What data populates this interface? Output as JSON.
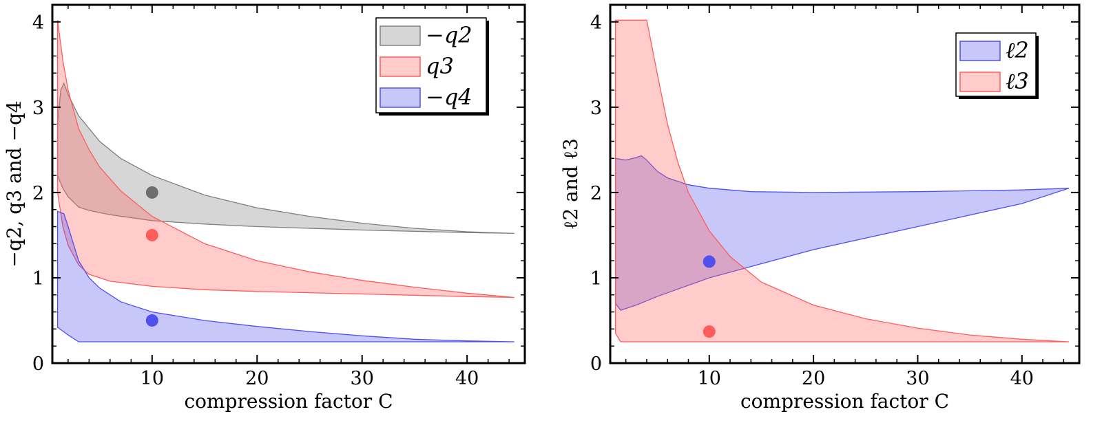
{
  "chart_data": [
    {
      "type": "area",
      "xlabel": "compression factor C",
      "ylabel": "−q2, q3 and −q4",
      "xlim": [
        0.5,
        45.5
      ],
      "ylim": [
        0,
        4.2
      ],
      "xticks": [
        10,
        20,
        30,
        40
      ],
      "yticks": [
        0,
        1,
        2,
        3,
        4
      ],
      "legend_position": "top-right",
      "series": [
        {
          "name": "−q2",
          "color": "#808080",
          "upper": [
            [
              1,
              2.8
            ],
            [
              1.3,
              3.2
            ],
            [
              1.6,
              3.28
            ],
            [
              2,
              3.15
            ],
            [
              3,
              2.9
            ],
            [
              4,
              2.75
            ],
            [
              5,
              2.6
            ],
            [
              7,
              2.4
            ],
            [
              10,
              2.2
            ],
            [
              15,
              1.97
            ],
            [
              20,
              1.82
            ],
            [
              25,
              1.72
            ],
            [
              30,
              1.64
            ],
            [
              35,
              1.58
            ],
            [
              40,
              1.54
            ],
            [
              44.5,
              1.52
            ]
          ],
          "lower": [
            [
              1,
              2.2
            ],
            [
              1.5,
              2.05
            ],
            [
              2,
              1.95
            ],
            [
              3,
              1.83
            ],
            [
              4,
              1.79
            ],
            [
              6,
              1.74
            ],
            [
              10,
              1.67
            ],
            [
              15,
              1.63
            ],
            [
              20,
              1.6
            ],
            [
              30,
              1.56
            ],
            [
              40,
              1.53
            ],
            [
              44.5,
              1.52
            ]
          ],
          "point": [
            10,
            2.0
          ]
        },
        {
          "name": "q3",
          "color": "#ff5c5c",
          "upper": [
            [
              1,
              4.02
            ],
            [
              1.5,
              3.55
            ],
            [
              2,
              3.2
            ],
            [
              3,
              2.75
            ],
            [
              4,
              2.5
            ],
            [
              5,
              2.3
            ],
            [
              7,
              2.02
            ],
            [
              10,
              1.72
            ],
            [
              15,
              1.4
            ],
            [
              20,
              1.2
            ],
            [
              25,
              1.07
            ],
            [
              30,
              0.97
            ],
            [
              35,
              0.89
            ],
            [
              40,
              0.82
            ],
            [
              44.5,
              0.77
            ]
          ],
          "lower": [
            [
              1,
              2.0
            ],
            [
              1.5,
              1.6
            ],
            [
              2,
              1.38
            ],
            [
              3,
              1.15
            ],
            [
              4,
              1.04
            ],
            [
              6,
              0.96
            ],
            [
              10,
              0.9
            ],
            [
              15,
              0.86
            ],
            [
              20,
              0.84
            ],
            [
              30,
              0.81
            ],
            [
              40,
              0.78
            ],
            [
              44.5,
              0.77
            ]
          ],
          "point": [
            10,
            1.5
          ]
        },
        {
          "name": "−q4",
          "color": "#5050ee",
          "upper": [
            [
              1,
              1.78
            ],
            [
              1.6,
              1.75
            ],
            [
              2,
              1.6
            ],
            [
              3,
              1.2
            ],
            [
              4,
              1.0
            ],
            [
              5,
              0.88
            ],
            [
              7,
              0.72
            ],
            [
              10,
              0.6
            ],
            [
              15,
              0.5
            ],
            [
              20,
              0.43
            ],
            [
              25,
              0.37
            ],
            [
              30,
              0.32
            ],
            [
              35,
              0.28
            ],
            [
              40,
              0.26
            ],
            [
              44.5,
              0.25
            ]
          ],
          "lower": [
            [
              1,
              0.42
            ],
            [
              2,
              0.33
            ],
            [
              3,
              0.25
            ],
            [
              10,
              0.25
            ],
            [
              20,
              0.25
            ],
            [
              30,
              0.25
            ],
            [
              44.5,
              0.25
            ]
          ],
          "point": [
            10,
            0.5
          ]
        }
      ]
    },
    {
      "type": "area",
      "xlabel": "compression factor C",
      "ylabel": "ℓ2 and ℓ3",
      "xlim": [
        0.5,
        45.5
      ],
      "ylim": [
        0,
        4.2
      ],
      "xticks": [
        10,
        20,
        30,
        40
      ],
      "yticks": [
        0,
        1,
        2,
        3,
        4
      ],
      "legend_position": "top-right",
      "series": [
        {
          "name": "ℓ2",
          "color": "#5050ee",
          "upper": [
            [
              1,
              2.4
            ],
            [
              2,
              2.38
            ],
            [
              3,
              2.41
            ],
            [
              3.5,
              2.43
            ],
            [
              4,
              2.38
            ],
            [
              5,
              2.25
            ],
            [
              6,
              2.17
            ],
            [
              8,
              2.09
            ],
            [
              10,
              2.05
            ],
            [
              14,
              2.01
            ],
            [
              20,
              2.0
            ],
            [
              30,
              2.01
            ],
            [
              40,
              2.03
            ],
            [
              44.5,
              2.05
            ]
          ],
          "lower": [
            [
              1,
              0.7
            ],
            [
              1.5,
              0.62
            ],
            [
              3,
              0.68
            ],
            [
              5,
              0.78
            ],
            [
              10,
              1.0
            ],
            [
              20,
              1.33
            ],
            [
              30,
              1.6
            ],
            [
              40,
              1.87
            ],
            [
              44.5,
              2.05
            ]
          ],
          "point": [
            10,
            1.19
          ]
        },
        {
          "name": "ℓ3",
          "color": "#ff5c5c",
          "upper": [
            [
              1,
              4.02
            ],
            [
              4,
              4.02
            ],
            [
              5,
              3.4
            ],
            [
              6,
              2.8
            ],
            [
              7,
              2.35
            ],
            [
              8,
              2.0
            ],
            [
              10,
              1.55
            ],
            [
              12,
              1.25
            ],
            [
              15,
              0.95
            ],
            [
              20,
              0.68
            ],
            [
              25,
              0.52
            ],
            [
              30,
              0.41
            ],
            [
              35,
              0.33
            ],
            [
              40,
              0.28
            ],
            [
              44.5,
              0.25
            ]
          ],
          "lower": [
            [
              1,
              0.35
            ],
            [
              1.5,
              0.25
            ],
            [
              10,
              0.25
            ],
            [
              20,
              0.25
            ],
            [
              30,
              0.25
            ],
            [
              44.5,
              0.25
            ]
          ],
          "point": [
            10,
            0.37
          ]
        }
      ]
    }
  ]
}
